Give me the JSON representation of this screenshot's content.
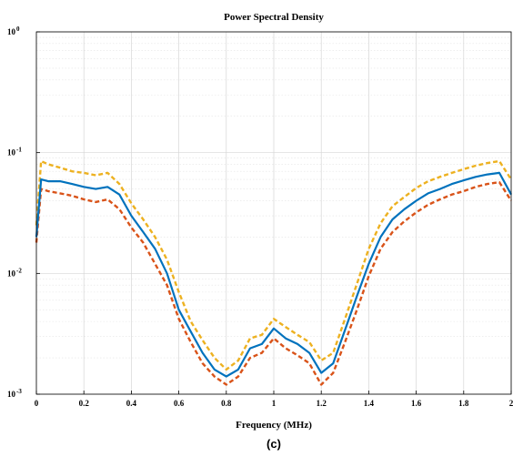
{
  "chart_data": {
    "type": "line",
    "title": "Power Spectral Density",
    "xlabel": "Frequency (MHz)",
    "ylabel": "",
    "caption": "(c)",
    "xlim": [
      0,
      2
    ],
    "ylim": [
      0.001,
      1
    ],
    "yscale": "log",
    "grid": true,
    "minor_grid": true,
    "x_ticks": [
      "0",
      "0.2",
      "0.4",
      "0.6",
      "0.8",
      "1",
      "1.2",
      "1.4",
      "1.6",
      "1.8",
      "2"
    ],
    "y_ticks": [
      {
        "base": "10",
        "exp": "-3",
        "value": 0.001
      },
      {
        "base": "10",
        "exp": "-2",
        "value": 0.01
      },
      {
        "base": "10",
        "exp": "-1",
        "value": 0.1
      },
      {
        "base": "10",
        "exp": "0",
        "value": 1
      }
    ],
    "x": [
      0,
      0.02,
      0.05,
      0.1,
      0.15,
      0.2,
      0.25,
      0.3,
      0.35,
      0.4,
      0.45,
      0.5,
      0.55,
      0.6,
      0.65,
      0.7,
      0.75,
      0.8,
      0.85,
      0.9,
      0.95,
      1.0,
      1.05,
      1.1,
      1.15,
      1.2,
      1.25,
      1.3,
      1.35,
      1.4,
      1.45,
      1.5,
      1.55,
      1.6,
      1.65,
      1.7,
      1.75,
      1.8,
      1.85,
      1.9,
      1.95,
      2.0
    ],
    "series": [
      {
        "color": "#EDB120",
        "style": "dashed",
        "values": [
          0.025,
          0.085,
          0.08,
          0.075,
          0.07,
          0.068,
          0.065,
          0.068,
          0.055,
          0.038,
          0.028,
          0.02,
          0.013,
          0.007,
          0.004,
          0.0028,
          0.002,
          0.0016,
          0.0019,
          0.0029,
          0.0031,
          0.0042,
          0.0036,
          0.0031,
          0.0027,
          0.0019,
          0.0022,
          0.0042,
          0.0082,
          0.016,
          0.026,
          0.036,
          0.043,
          0.051,
          0.058,
          0.063,
          0.068,
          0.073,
          0.078,
          0.082,
          0.085,
          0.06
        ]
      },
      {
        "color": "#0072BD",
        "style": "solid",
        "values": [
          0.02,
          0.06,
          0.058,
          0.058,
          0.055,
          0.052,
          0.05,
          0.052,
          0.045,
          0.03,
          0.022,
          0.016,
          0.01,
          0.005,
          0.0033,
          0.0022,
          0.0016,
          0.0014,
          0.0016,
          0.0024,
          0.0026,
          0.0035,
          0.0029,
          0.0026,
          0.0022,
          0.0015,
          0.0018,
          0.0034,
          0.0065,
          0.012,
          0.02,
          0.028,
          0.034,
          0.04,
          0.046,
          0.05,
          0.055,
          0.059,
          0.063,
          0.066,
          0.068,
          0.045
        ]
      },
      {
        "color": "#D95319",
        "style": "dashed",
        "values": [
          0.018,
          0.05,
          0.048,
          0.046,
          0.044,
          0.041,
          0.039,
          0.041,
          0.034,
          0.024,
          0.018,
          0.012,
          0.008,
          0.0042,
          0.0027,
          0.0018,
          0.0014,
          0.0012,
          0.0014,
          0.002,
          0.0022,
          0.0029,
          0.0024,
          0.0021,
          0.0018,
          0.0012,
          0.0015,
          0.0027,
          0.005,
          0.0095,
          0.016,
          0.022,
          0.027,
          0.032,
          0.037,
          0.041,
          0.045,
          0.048,
          0.052,
          0.055,
          0.057,
          0.04
        ]
      }
    ]
  }
}
